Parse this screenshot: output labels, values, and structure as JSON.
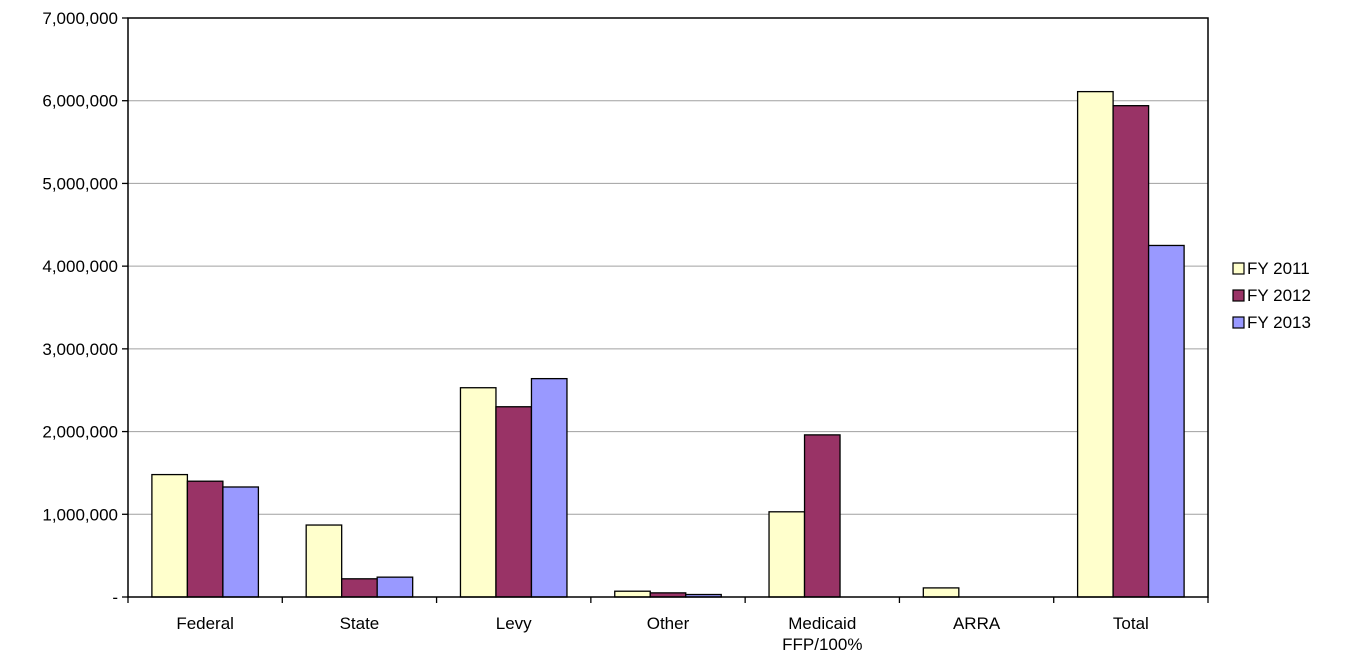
{
  "chart_data": {
    "type": "bar",
    "title": "",
    "xlabel": "",
    "ylabel": "",
    "categories": [
      [
        "Federal"
      ],
      [
        "State"
      ],
      [
        "Levy"
      ],
      [
        "Other"
      ],
      [
        "Medicaid",
        "FFP/100%"
      ],
      [
        "ARRA"
      ],
      [
        "Total"
      ]
    ],
    "series": [
      {
        "name": "FY 2011",
        "color": "#FFFFCC",
        "values": [
          1480000,
          870000,
          2530000,
          70000,
          1030000,
          110000,
          6110000
        ]
      },
      {
        "name": "FY 2012",
        "color": "#993366",
        "values": [
          1400000,
          220000,
          2300000,
          50000,
          1960000,
          0,
          5940000
        ]
      },
      {
        "name": "FY 2013",
        "color": "#9999FF",
        "values": [
          1330000,
          240000,
          2640000,
          30000,
          0,
          0,
          4250000
        ]
      }
    ],
    "ylim": [
      0,
      7000000
    ],
    "yticks": [
      {
        "value": 0,
        "label": "-"
      },
      {
        "value": 1000000,
        "label": "1,000,000"
      },
      {
        "value": 2000000,
        "label": "2,000,000"
      },
      {
        "value": 3000000,
        "label": "3,000,000"
      },
      {
        "value": 4000000,
        "label": "4,000,000"
      },
      {
        "value": 5000000,
        "label": "5,000,000"
      },
      {
        "value": 6000000,
        "label": "6,000,000"
      },
      {
        "value": 7000000,
        "label": "7,000,000"
      }
    ],
    "grid": true,
    "legend_position": "right"
  }
}
